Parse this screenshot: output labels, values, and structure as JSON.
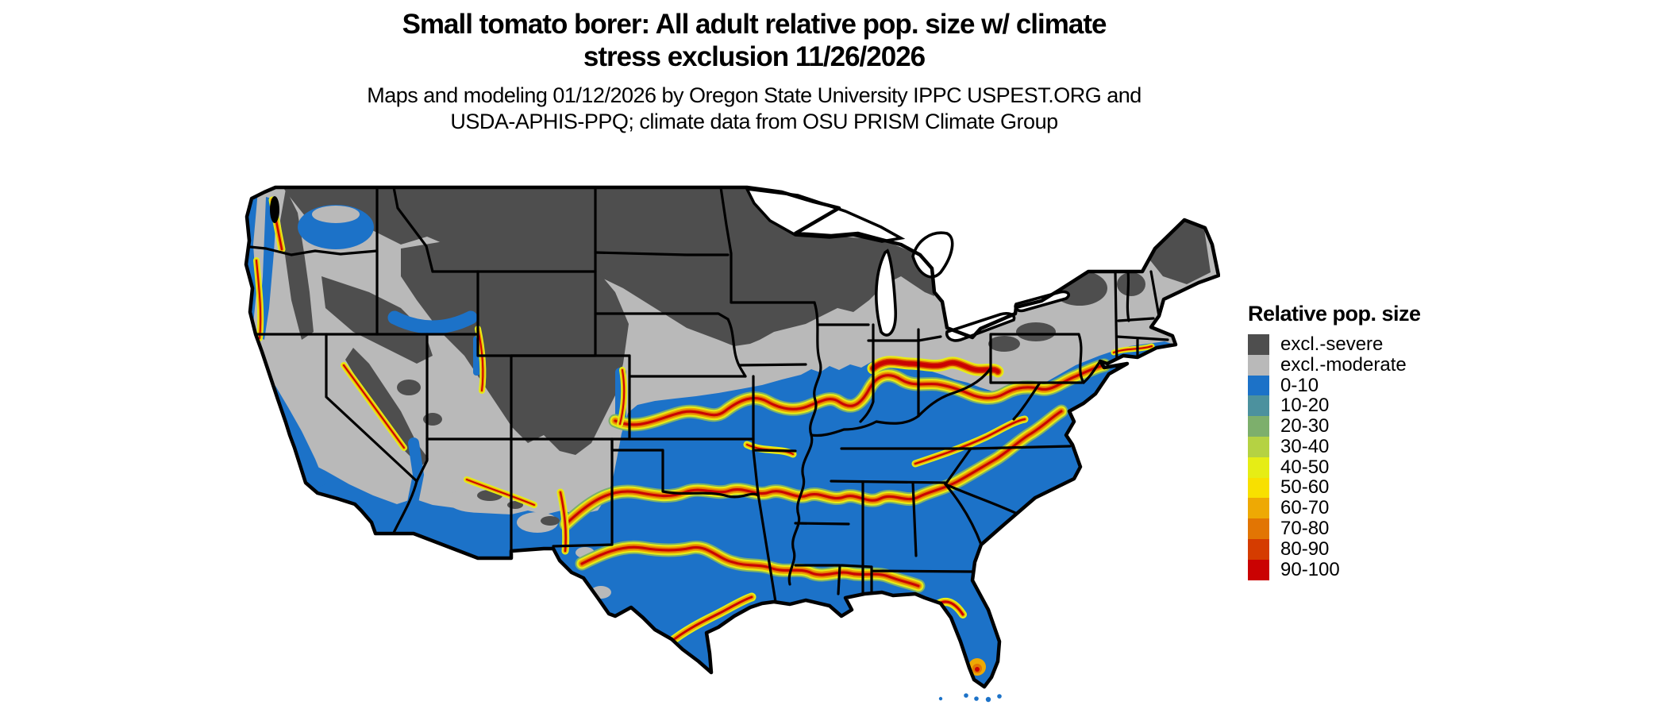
{
  "header": {
    "title_line1": "Small tomato borer: All adult relative pop. size w/ climate",
    "title_line2": "stress exclusion 11/26/2026",
    "subtitle_line1": "Maps and modeling 01/12/2026 by Oregon State University IPPC USPEST.ORG and",
    "subtitle_line2": "USDA-APHIS-PPQ; climate data from OSU PRISM Climate Group"
  },
  "legend": {
    "title": "Relative pop. size",
    "items": [
      {
        "label": "excl.-severe",
        "color": "#4E4E4E"
      },
      {
        "label": "excl.-moderate",
        "color": "#B9B9B9"
      },
      {
        "label": "0-10",
        "color": "#1C72C8"
      },
      {
        "label": "10-20",
        "color": "#4C919E"
      },
      {
        "label": "20-30",
        "color": "#7DAF6C"
      },
      {
        "label": "30-40",
        "color": "#B5D243"
      },
      {
        "label": "40-50",
        "color": "#E6ED15"
      },
      {
        "label": "50-60",
        "color": "#F8E000"
      },
      {
        "label": "60-70",
        "color": "#EEA904"
      },
      {
        "label": "70-80",
        "color": "#E27503"
      },
      {
        "label": "80-90",
        "color": "#D53C00"
      },
      {
        "label": "90-100",
        "color": "#CA0202"
      }
    ]
  },
  "map": {
    "region": "Contiguous United States",
    "border_color": "#000000",
    "water_color": "#FFFFFF",
    "colors": {
      "severe": "#4E4E4E",
      "moderate": "#B9B9B9",
      "blue": "#1C72C8",
      "teal": "#4C919E",
      "green": "#7DAF6C",
      "yellow_green": "#B5D243",
      "yellow": "#E6ED15",
      "gold": "#F8E000",
      "orange": "#EEA904",
      "dark_orange": "#E27503",
      "red_orange": "#D53C00",
      "red": "#CA0202"
    }
  },
  "chart_data": {
    "type": "heatmap",
    "title": "Small tomato borer: All adult relative pop. size w/ climate stress exclusion 11/26/2026",
    "subtitle": "Maps and modeling 01/12/2026 by Oregon State University IPPC USPEST.ORG and USDA-APHIS-PPQ; climate data from OSU PRISM Climate Group",
    "legend_title": "Relative pop. size",
    "legend_position": "right",
    "categories": [
      "excl.-severe",
      "excl.-moderate",
      "0-10",
      "10-20",
      "20-30",
      "30-40",
      "40-50",
      "50-60",
      "60-70",
      "70-80",
      "80-90",
      "90-100"
    ],
    "colors": [
      "#4E4E4E",
      "#B9B9B9",
      "#1C72C8",
      "#4C919E",
      "#7DAF6C",
      "#B5D243",
      "#E6ED15",
      "#F8E000",
      "#EEA904",
      "#E27503",
      "#D53C00",
      "#CA0202"
    ],
    "spatial_pattern": "Northern tier states (WA-east, ID, MT, ND, SD, MN, WI, upper MI, WY, CO Rockies, Sierra Nevada, northern New England) are excl.-severe dark gray; a light gray excl.-moderate band crosses Nebraska, Iowa, the Great Basin, upstate NY and Pennsylvania; the southern half of the US (CA valleys and coast, AZ/NM south, TX, the Gulf and Atlantic states up the coast to New England) is blue 0-10; sinuous yellow-orange-red high-population bands (40-100) trace the transition zones through Kansas-Missouri-Illinois-Indiana-Ohio to New Jersey, through Oklahoma-Arkansas-Tennessee-Georgia-Carolinas, across central Texas and the Gulf coast, along the California coast ranges, Puget Sound, Wasatch front, Rio Grande valley, Mogollon Rim and central/south Florida."
  }
}
